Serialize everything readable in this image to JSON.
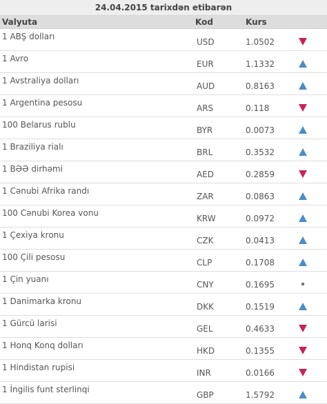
{
  "title": "24.04.2015 tarixdən etibarən",
  "columns": {
    "name": "Valyuta",
    "code": "Kod",
    "rate": "Kurs"
  },
  "rows": [
    {
      "name": "1 ABŞ dolları",
      "code": "USD",
      "rate": "1.0502",
      "trend": "down"
    },
    {
      "name": "1 Avro",
      "code": "EUR",
      "rate": "1.1332",
      "trend": "up"
    },
    {
      "name": "1 Avstraliya dolları",
      "code": "AUD",
      "rate": "0.8163",
      "trend": "up"
    },
    {
      "name": "1 Argentina pesosu",
      "code": "ARS",
      "rate": "0.118",
      "trend": "down"
    },
    {
      "name": "100 Belarus rublu",
      "code": "BYR",
      "rate": "0.0073",
      "trend": "up"
    },
    {
      "name": "1 Braziliya rialı",
      "code": "BRL",
      "rate": "0.3532",
      "trend": "up"
    },
    {
      "name": "1 BƏƏ dirhəmi",
      "code": "AED",
      "rate": "0.2859",
      "trend": "down"
    },
    {
      "name": "1 Cənubi Afrika randı",
      "code": "ZAR",
      "rate": "0.0863",
      "trend": "up"
    },
    {
      "name": "100 Cənubi Korea vonu",
      "code": "KRW",
      "rate": "0.0972",
      "trend": "up"
    },
    {
      "name": "1 Çexiya kronu",
      "code": "CZK",
      "rate": "0.0413",
      "trend": "up"
    },
    {
      "name": "100 Çili pesosu",
      "code": "CLP",
      "rate": "0.1708",
      "trend": "up"
    },
    {
      "name": "1 Çin yuanı",
      "code": "CNY",
      "rate": "0.1695",
      "trend": "flat"
    },
    {
      "name": "1 Danimarka kronu",
      "code": "DKK",
      "rate": "0.1519",
      "trend": "up"
    },
    {
      "name": "1 Gürcü larisi",
      "code": "GEL",
      "rate": "0.4633",
      "trend": "down"
    },
    {
      "name": "1 Honq Konq dolları",
      "code": "HKD",
      "rate": "0.1355",
      "trend": "down"
    },
    {
      "name": "1 Hindistan rupisi",
      "code": "INR",
      "rate": "0.0166",
      "trend": "down"
    },
    {
      "name": "1 İngilis funt sterlinqi",
      "code": "GBP",
      "rate": "1.5792",
      "trend": "up"
    }
  ],
  "colors": {
    "up": "#4b8cc8",
    "down": "#c8225c",
    "flat": "#777777"
  }
}
